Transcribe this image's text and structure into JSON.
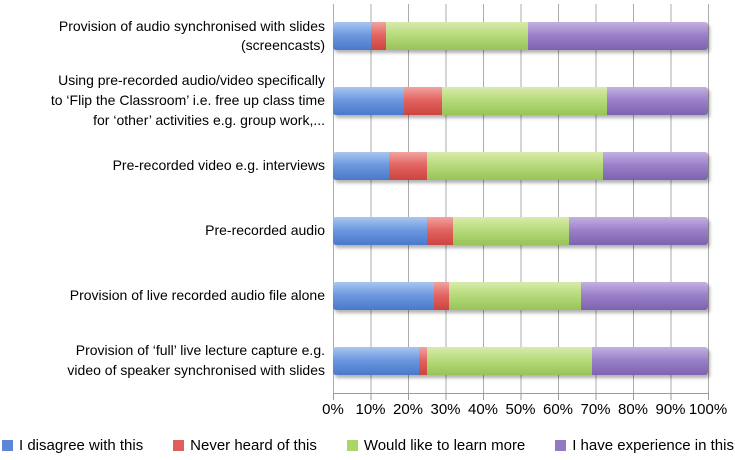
{
  "chart_data": {
    "type": "bar",
    "orientation": "horizontal-stacked",
    "title": "",
    "xlabel": "",
    "ylabel": "",
    "xlim": [
      0,
      100
    ],
    "grid": "vertical",
    "legend_position": "bottom",
    "x_tick_labels": [
      "0%",
      "10%",
      "20%",
      "30%",
      "40%",
      "50%",
      "60%",
      "70%",
      "80%",
      "90%",
      "100%"
    ],
    "categories": [
      "Provision of audio synchronised with slides\n(screencasts)",
      "Using pre-recorded audio/video specifically\nto ‘Flip the Classroom’ i.e. free up class time\nfor ‘other’ activities e.g. group work,...",
      "Pre-recorded video e.g. interviews",
      "Pre-recorded audio",
      "Provision of live recorded audio file alone",
      "Provision of ‘full’ live lecture capture e.g.\nvideo of speaker synchronised with slides"
    ],
    "series": [
      {
        "key": "disagree",
        "name": "I disagree with this",
        "color": "#5b87d5",
        "values": [
          10,
          19,
          15,
          25,
          27,
          23
        ]
      },
      {
        "key": "never-heard",
        "name": "Never heard of this",
        "color": "#de5e5a",
        "values": [
          4,
          10,
          10,
          7,
          4,
          2
        ]
      },
      {
        "key": "learn-more",
        "name": "Would like to learn more",
        "color": "#abd564",
        "values": [
          38,
          44,
          47,
          31,
          35,
          44
        ]
      },
      {
        "key": "experience",
        "name": "I have experience in this",
        "color": "#9179c4",
        "values": [
          48,
          27,
          28,
          37,
          34,
          31
        ]
      }
    ],
    "colors": {
      "gridline": "#ababab",
      "axis": "#9b9b9b"
    }
  }
}
